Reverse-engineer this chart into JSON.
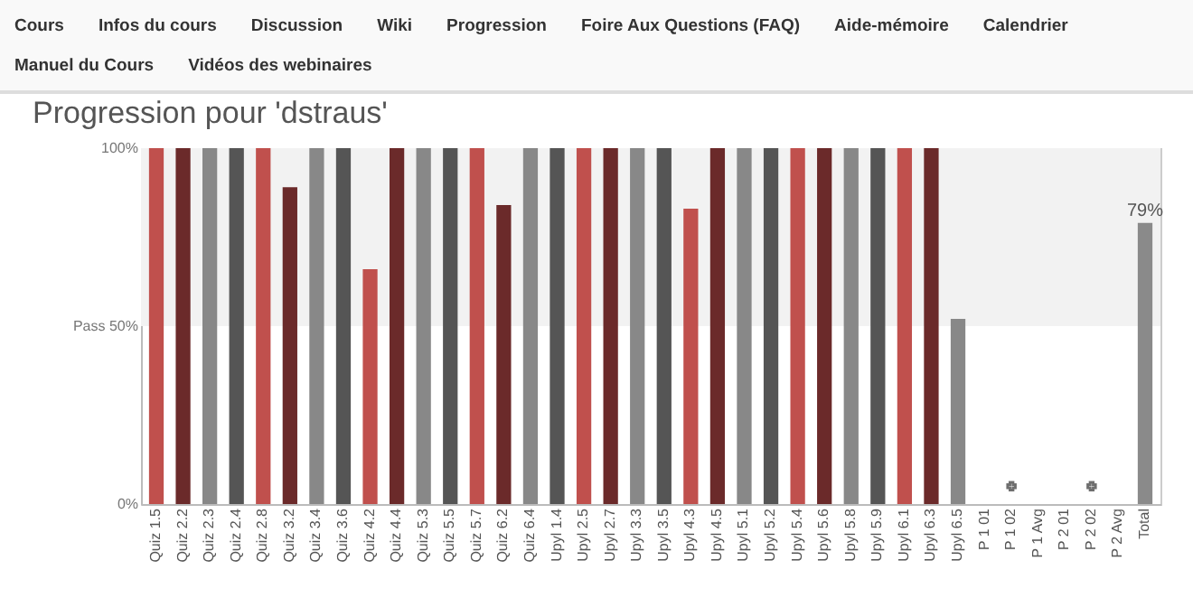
{
  "chart_data": {
    "type": "bar",
    "title": "Progression pour 'dstraus'",
    "annotations": [
      "Cours",
      "Infos du cours",
      "Discussion",
      "Wiki",
      "Progression",
      "Foire Aux Questions (FAQ)",
      "Aide-mémoire",
      "Calendrier",
      "Manuel du Cours",
      "Vidéos des webinaires"
    ],
    "categories": [
      "Quiz 1.5",
      "Quiz 2.2",
      "Quiz 2.3",
      "Quiz 2.4",
      "Quiz 2.8",
      "Quiz 3.2",
      "Quiz 3.4",
      "Quiz 3.6",
      "Quiz 4.2",
      "Quiz 4.4",
      "Quiz 5.3",
      "Quiz 5.5",
      "Quiz 5.7",
      "Quiz 6.2",
      "Quiz 6.4",
      "Upyl 1.4",
      "Upyl 2.5",
      "Upyl 2.7",
      "Upyl 3.3",
      "Upyl 3.5",
      "Upyl 4.3",
      "Upyl 4.5",
      "Upyl 5.1",
      "Upyl 5.2",
      "Upyl 5.4",
      "Upyl 5.6",
      "Upyl 5.8",
      "Upyl 5.9",
      "Upyl 6.1",
      "Upyl 6.3",
      "Upyl 6.5",
      "P 1 01",
      "P 1 02",
      "P 1 Avg",
      "P 2 01",
      "P 2 02",
      "P 2 Avg",
      "Total"
    ],
    "series": [
      {
        "values": [
          1,
          1,
          1,
          1,
          1,
          0.89,
          1,
          1,
          0.66,
          1,
          1,
          1,
          1,
          0.84,
          1,
          1,
          1,
          1,
          1,
          1,
          0.83,
          1,
          1,
          1,
          1,
          1,
          1,
          1,
          1,
          1,
          0.52,
          null,
          null,
          null,
          null,
          null,
          null,
          0.79
        ],
        "colors": [
          "#c0504d",
          "#6b2a2a",
          "#888888",
          "#555555",
          "#c0504d",
          "#6b2a2a",
          "#888888",
          "#555555",
          "#c0504d",
          "#6b2a2a",
          "#888888",
          "#555555",
          "#c0504d",
          "#6b2a2a",
          "#888888",
          "#555555",
          "#c0504d",
          "#6b2a2a",
          "#888888",
          "#555555",
          "#c0504d",
          "#6b2a2a",
          "#888888",
          "#555555",
          "#c0504d",
          "#6b2a2a",
          "#888888",
          "#555555",
          "#c0504d",
          "#6b2a2a",
          "#888888",
          null,
          null,
          null,
          null,
          null,
          null,
          "#8a8a8a"
        ],
        "value_labels": [
          null,
          null,
          null,
          null,
          null,
          null,
          null,
          null,
          null,
          null,
          null,
          null,
          null,
          null,
          null,
          null,
          null,
          null,
          null,
          null,
          null,
          null,
          null,
          null,
          null,
          null,
          null,
          null,
          null,
          null,
          null,
          null,
          null,
          null,
          null,
          null,
          null,
          "79%"
        ]
      },
      {
        "type": "scatter",
        "x": [
          "P 1 02",
          "P 2 02"
        ],
        "values": [
          0.05,
          0.05
        ],
        "color": "#333333",
        "marker": "cross"
      }
    ],
    "ylim": [
      0,
      1
    ],
    "yticks": [
      {
        "value": 0,
        "label": "0%"
      },
      {
        "value": 0.5,
        "label": "Pass 50%"
      },
      {
        "value": 1,
        "label": "100%"
      }
    ],
    "bands": [
      {
        "axis": "y",
        "from": 0.5,
        "to": 1,
        "color": "#f2f2f2"
      }
    ]
  }
}
